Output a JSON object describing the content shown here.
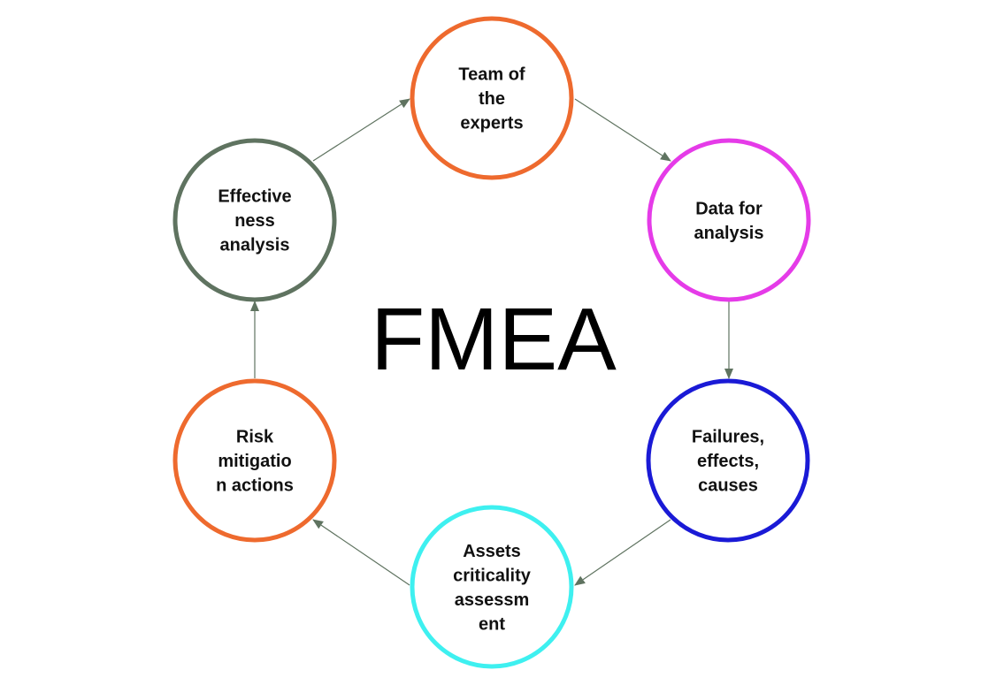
{
  "title": "FMEA",
  "edge_color": "#5f7360",
  "nodes": [
    {
      "id": "team",
      "lines": [
        "Team of",
        "the",
        "experts"
      ],
      "color": "#ee6a2e"
    },
    {
      "id": "data",
      "lines": [
        "Data for",
        "analysis"
      ],
      "color": "#e53be8"
    },
    {
      "id": "failures",
      "lines": [
        "Failures,",
        "effects,",
        "causes"
      ],
      "color": "#1a1ad6"
    },
    {
      "id": "assets",
      "lines": [
        "Assets",
        "criticality",
        "assessm",
        "ent"
      ],
      "color": "#3ef0f0"
    },
    {
      "id": "risk",
      "lines": [
        "Risk",
        "mitigatio",
        "n actions"
      ],
      "color": "#ee6a2e"
    },
    {
      "id": "effectiveness",
      "lines": [
        "Effective",
        "ness",
        "analysis"
      ],
      "color": "#5f7360"
    }
  ],
  "edges": [
    {
      "from": "team",
      "to": "data"
    },
    {
      "from": "data",
      "to": "failures"
    },
    {
      "from": "failures",
      "to": "assets"
    },
    {
      "from": "assets",
      "to": "risk"
    },
    {
      "from": "risk",
      "to": "effectiveness"
    },
    {
      "from": "effectiveness",
      "to": "team"
    }
  ]
}
